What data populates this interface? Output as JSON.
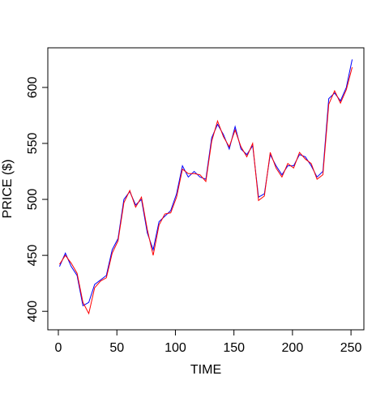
{
  "chart_data": {
    "type": "line",
    "xlabel": "TIME",
    "ylabel": "PRICE ($)",
    "x": [
      1,
      6,
      11,
      16,
      21,
      26,
      31,
      36,
      41,
      46,
      51,
      56,
      61,
      66,
      71,
      76,
      81,
      86,
      91,
      96,
      101,
      106,
      111,
      116,
      121,
      126,
      131,
      136,
      141,
      146,
      151,
      156,
      161,
      166,
      171,
      176,
      181,
      186,
      191,
      196,
      201,
      206,
      211,
      216,
      221,
      226,
      231,
      236,
      241,
      246,
      251
    ],
    "series": [
      {
        "name": "blue",
        "color": "#0000ff",
        "values": [
          440,
          452,
          440,
          432,
          405,
          408,
          424,
          428,
          432,
          455,
          465,
          500,
          507,
          495,
          500,
          470,
          455,
          480,
          485,
          490,
          505,
          530,
          520,
          525,
          520,
          518,
          555,
          567,
          558,
          545,
          565,
          545,
          540,
          548,
          502,
          505,
          540,
          530,
          522,
          530,
          530,
          540,
          538,
          530,
          520,
          525,
          590,
          595,
          588,
          600,
          625
        ]
      },
      {
        "name": "red",
        "color": "#ff0000",
        "values": [
          442,
          450,
          443,
          434,
          408,
          398,
          421,
          427,
          430,
          452,
          463,
          497,
          508,
          493,
          502,
          473,
          450,
          477,
          487,
          488,
          502,
          527,
          523,
          523,
          522,
          516,
          552,
          570,
          556,
          547,
          562,
          547,
          538,
          550,
          499,
          503,
          542,
          528,
          520,
          532,
          528,
          542,
          536,
          532,
          518,
          522,
          585,
          597,
          586,
          598,
          618
        ]
      }
    ],
    "xlim": [
      -9,
      261
    ],
    "ylim": [
      383.5,
      635.4
    ],
    "xticks": [
      0,
      50,
      100,
      150,
      200,
      250
    ],
    "yticks": [
      400,
      450,
      500,
      550,
      600
    ]
  }
}
